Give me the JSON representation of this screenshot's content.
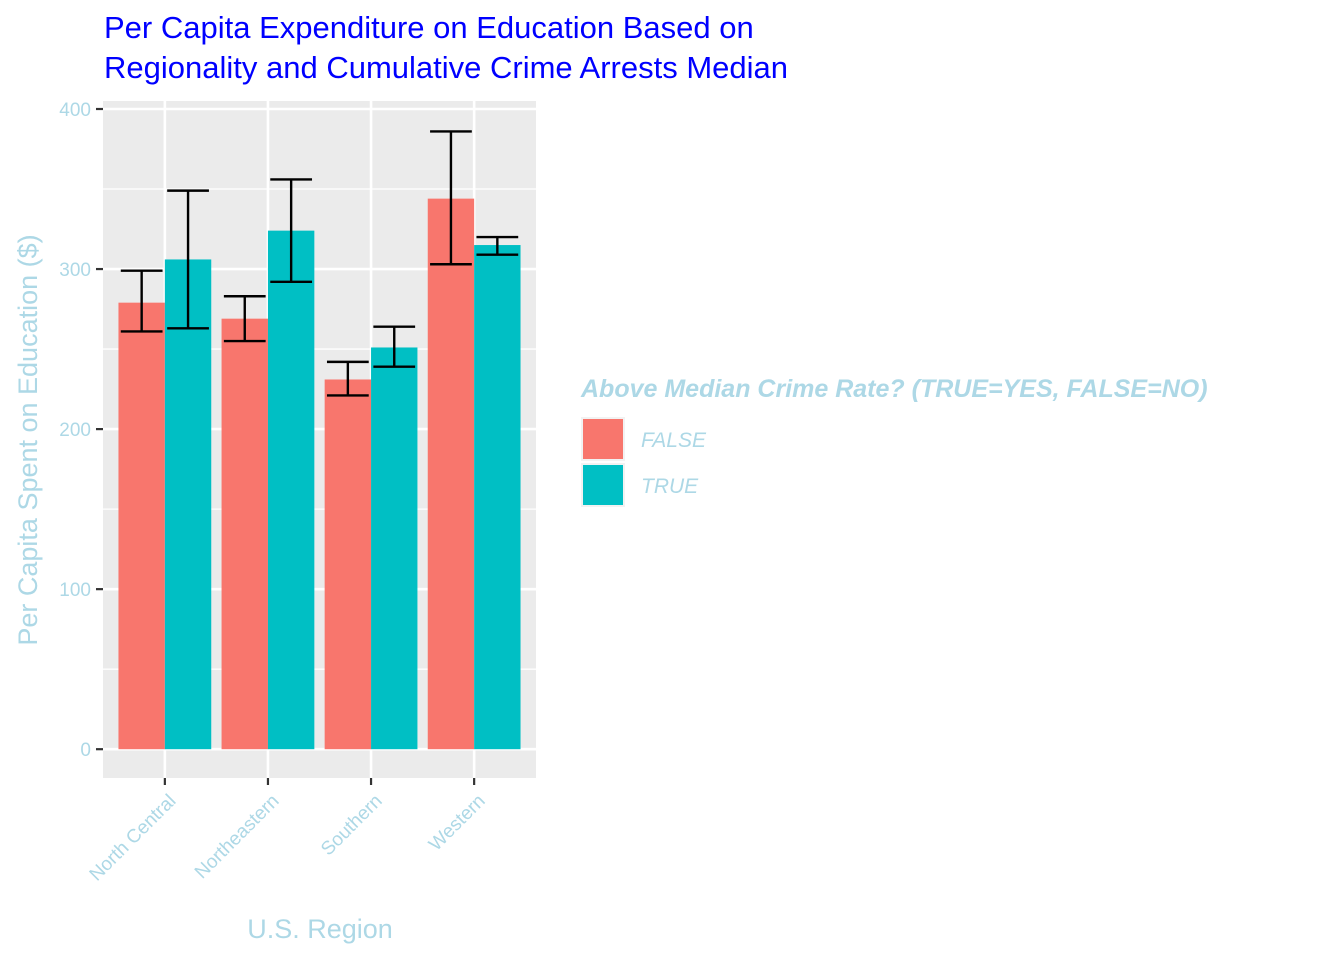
{
  "chart_data": {
    "type": "bar",
    "title": "Per Capita Expenditure on Education Based on Regionality and Cumulative Crime Arrests Median",
    "title_lines": [
      "Per Capita Expenditure on Education Based on",
      "Regionality and Cumulative Crime Arrests Median"
    ],
    "xlabel": "U.S. Region",
    "ylabel": "Per Capita Spent on Education ($)",
    "categories": [
      "North Central",
      "Northeastern",
      "Southern",
      "Western"
    ],
    "ylim": [
      -18,
      405
    ],
    "yticks": [
      0,
      100,
      200,
      300,
      400
    ],
    "grid": true,
    "legend_position": "right",
    "legend_title": "Above Median Crime Rate? (TRUE=YES, FALSE=NO)",
    "series": [
      {
        "name": "FALSE",
        "color": "#F8766D",
        "values": [
          279,
          269,
          231,
          344
        ],
        "error_low": [
          261,
          255,
          221,
          303
        ],
        "error_high": [
          299,
          283,
          242,
          386
        ]
      },
      {
        "name": "TRUE",
        "color": "#00BFC4",
        "values": [
          306,
          324,
          251,
          315
        ],
        "error_low": [
          263,
          292,
          239,
          309
        ],
        "error_high": [
          349,
          356,
          264,
          320
        ]
      }
    ],
    "colors": {
      "title": "#0000ff",
      "text": "#add8e6",
      "panel": "#ebebeb",
      "grid": "#ffffff",
      "error_bar": "#000000"
    }
  }
}
